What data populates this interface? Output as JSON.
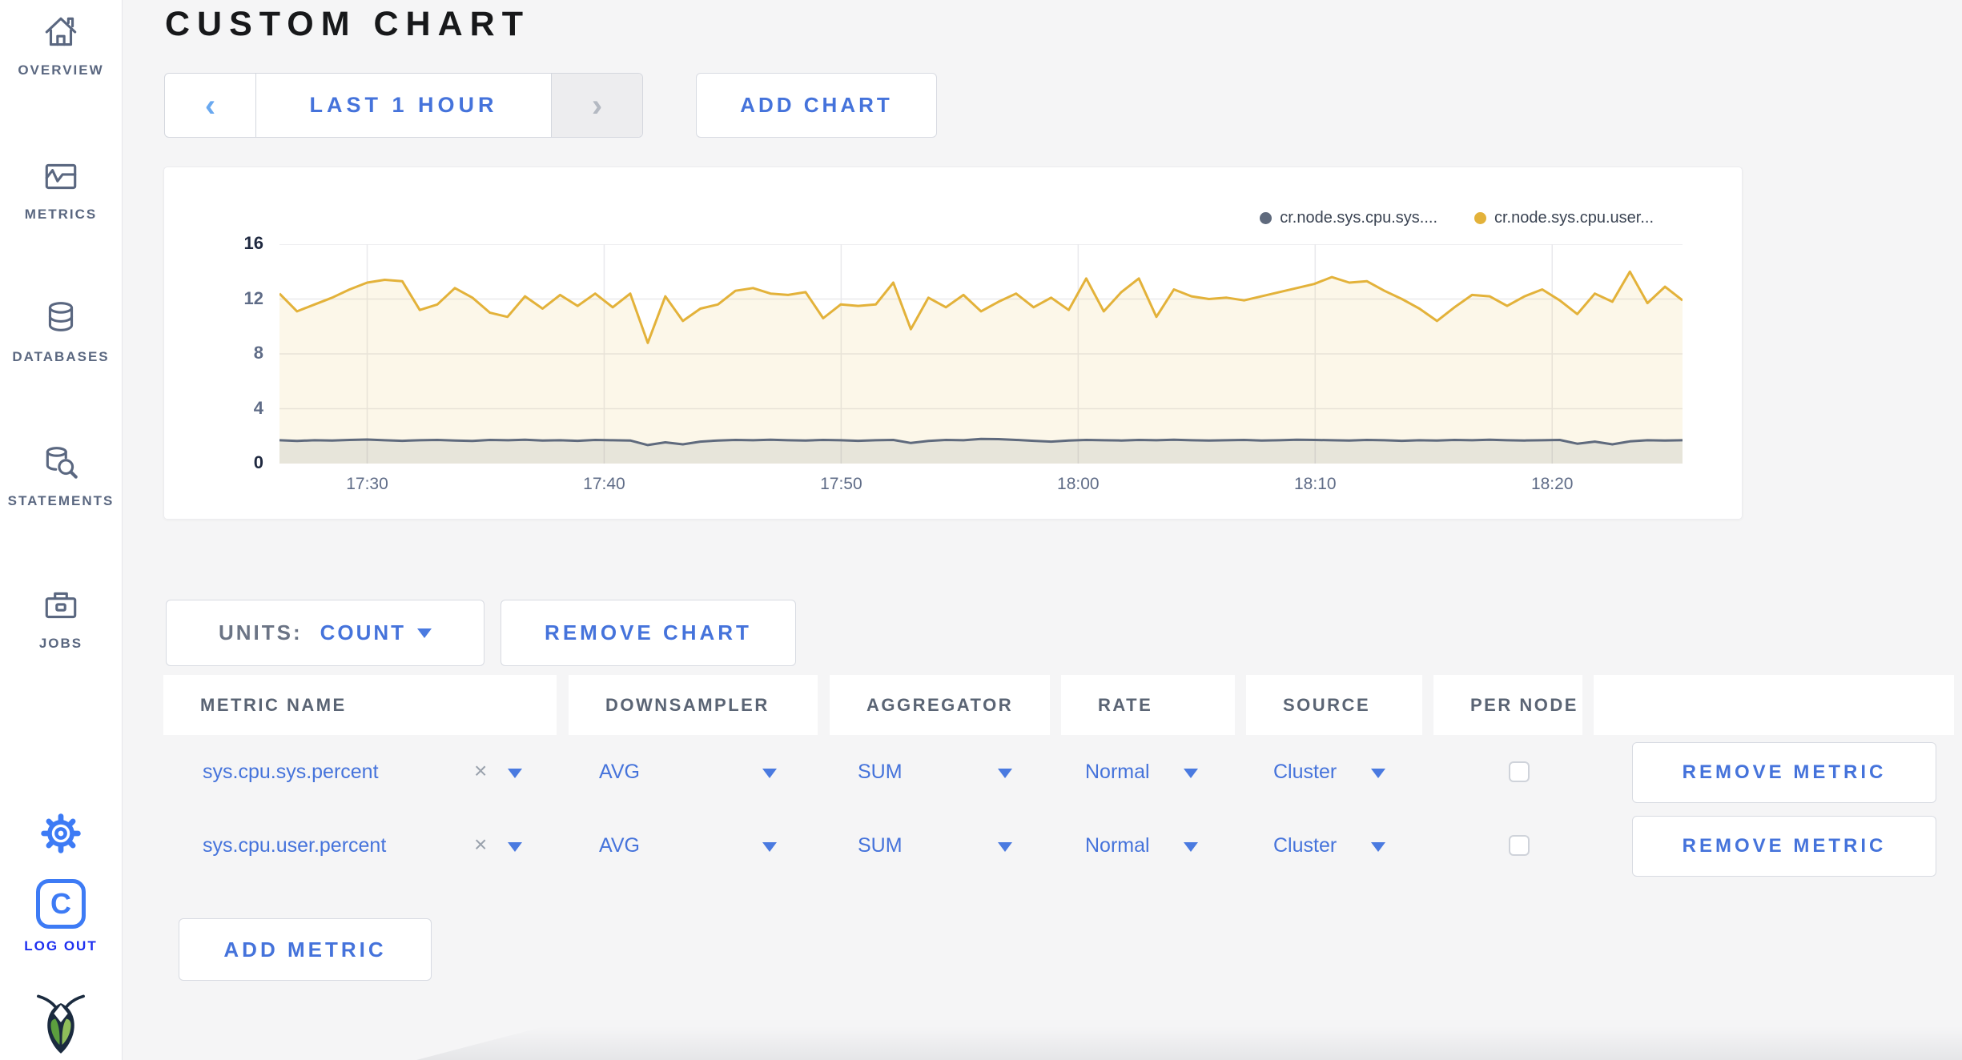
{
  "page": {
    "title": "CUSTOM CHART"
  },
  "colors": {
    "accent_blue": "#4573db",
    "light_blue_arrow": "#6aa9f0",
    "logout_blue": "#1d2ff0",
    "icon_slate": "#5a6780",
    "series_yellow": "#e3b23a",
    "series_slate": "#5f6a7d",
    "logo_navy": "#1b2b3f",
    "logo_green_dark": "#5c9e3e",
    "logo_green_light": "#8fbe5a"
  },
  "sidebar": {
    "items": [
      {
        "label": "OVERVIEW",
        "icon": "home-icon"
      },
      {
        "label": "METRICS",
        "icon": "metrics-chart-icon"
      },
      {
        "label": "DATABASES",
        "icon": "database-icon"
      },
      {
        "label": "STATEMENTS",
        "icon": "statements-search-icon"
      },
      {
        "label": "JOBS",
        "icon": "jobs-briefcase-icon"
      }
    ],
    "logout_label": "LOG OUT"
  },
  "toolbar": {
    "prev_label": "‹",
    "time_range_label": "LAST 1 HOUR",
    "next_label": "›",
    "add_chart_label": "ADD CHART"
  },
  "chart_controls": {
    "units_label": "UNITS:",
    "units_value": "COUNT",
    "remove_chart_label": "REMOVE CHART",
    "add_metric_label": "ADD METRIC"
  },
  "chart_data": {
    "type": "line",
    "title": "",
    "xlabel": "",
    "ylabel": "",
    "ylim": [
      0,
      16
    ],
    "y_ticks": [
      0,
      4,
      8,
      12,
      16
    ],
    "grid": true,
    "legend_position": "top-right",
    "x_total_minutes": 59.2,
    "x_ticks": [
      {
        "label": "17:30",
        "minute": 3.7
      },
      {
        "label": "17:40",
        "minute": 13.7
      },
      {
        "label": "17:50",
        "minute": 23.7
      },
      {
        "label": "18:00",
        "minute": 33.7
      },
      {
        "label": "18:10",
        "minute": 43.7
      },
      {
        "label": "18:20",
        "minute": 53.7
      }
    ],
    "series": [
      {
        "name": "cr.node.sys.cpu.sys....",
        "color": "#5f6a7d",
        "fill_opacity": 0.13,
        "values": [
          1.7,
          1.65,
          1.7,
          1.68,
          1.72,
          1.75,
          1.7,
          1.66,
          1.7,
          1.72,
          1.68,
          1.65,
          1.72,
          1.7,
          1.74,
          1.68,
          1.7,
          1.66,
          1.72,
          1.7,
          1.68,
          1.35,
          1.55,
          1.4,
          1.6,
          1.68,
          1.72,
          1.7,
          1.74,
          1.7,
          1.68,
          1.72,
          1.7,
          1.66,
          1.7,
          1.72,
          1.5,
          1.65,
          1.72,
          1.7,
          1.8,
          1.78,
          1.72,
          1.66,
          1.6,
          1.68,
          1.72,
          1.7,
          1.68,
          1.72,
          1.7,
          1.74,
          1.7,
          1.68,
          1.7,
          1.72,
          1.68,
          1.7,
          1.74,
          1.72,
          1.7,
          1.68,
          1.72,
          1.7,
          1.66,
          1.7,
          1.68,
          1.72,
          1.7,
          1.74,
          1.7,
          1.68,
          1.7,
          1.72,
          1.45,
          1.6,
          1.4,
          1.62,
          1.7,
          1.68,
          1.7
        ]
      },
      {
        "name": "cr.node.sys.cpu.user...",
        "color": "#e3b23a",
        "fill_opacity": 0.11,
        "values": [
          12.4,
          11.1,
          11.6,
          12.1,
          12.7,
          13.2,
          13.4,
          13.3,
          11.2,
          11.6,
          12.8,
          12.1,
          11.0,
          10.7,
          12.2,
          11.3,
          12.3,
          11.5,
          12.4,
          11.4,
          12.4,
          8.8,
          12.2,
          10.4,
          11.3,
          11.6,
          12.6,
          12.8,
          12.4,
          12.3,
          12.5,
          10.6,
          11.6,
          11.5,
          11.6,
          13.2,
          9.8,
          12.1,
          11.4,
          12.3,
          11.1,
          11.8,
          12.4,
          11.4,
          12.1,
          11.2,
          13.5,
          11.1,
          12.5,
          13.5,
          10.7,
          12.7,
          12.2,
          12.0,
          12.1,
          11.9,
          12.2,
          12.5,
          12.8,
          13.1,
          13.6,
          13.2,
          13.3,
          12.6,
          12.0,
          11.3,
          10.4,
          11.4,
          12.3,
          12.2,
          11.5,
          12.2,
          12.7,
          11.9,
          10.9,
          12.4,
          11.8,
          14.0,
          11.7,
          12.9,
          11.9
        ]
      }
    ]
  },
  "table": {
    "headers": [
      "METRIC NAME",
      "DOWNSAMPLER",
      "AGGREGATOR",
      "RATE",
      "SOURCE",
      "PER NODE",
      ""
    ],
    "rows": [
      {
        "metric_name": "sys.cpu.sys.percent",
        "clear_label": "×",
        "downsampler": "AVG",
        "aggregator": "SUM",
        "rate": "Normal",
        "source": "Cluster",
        "per_node_checked": false,
        "remove_label": "REMOVE METRIC"
      },
      {
        "metric_name": "sys.cpu.user.percent",
        "clear_label": "×",
        "downsampler": "AVG",
        "aggregator": "SUM",
        "rate": "Normal",
        "source": "Cluster",
        "per_node_checked": false,
        "remove_label": "REMOVE METRIC"
      }
    ]
  }
}
